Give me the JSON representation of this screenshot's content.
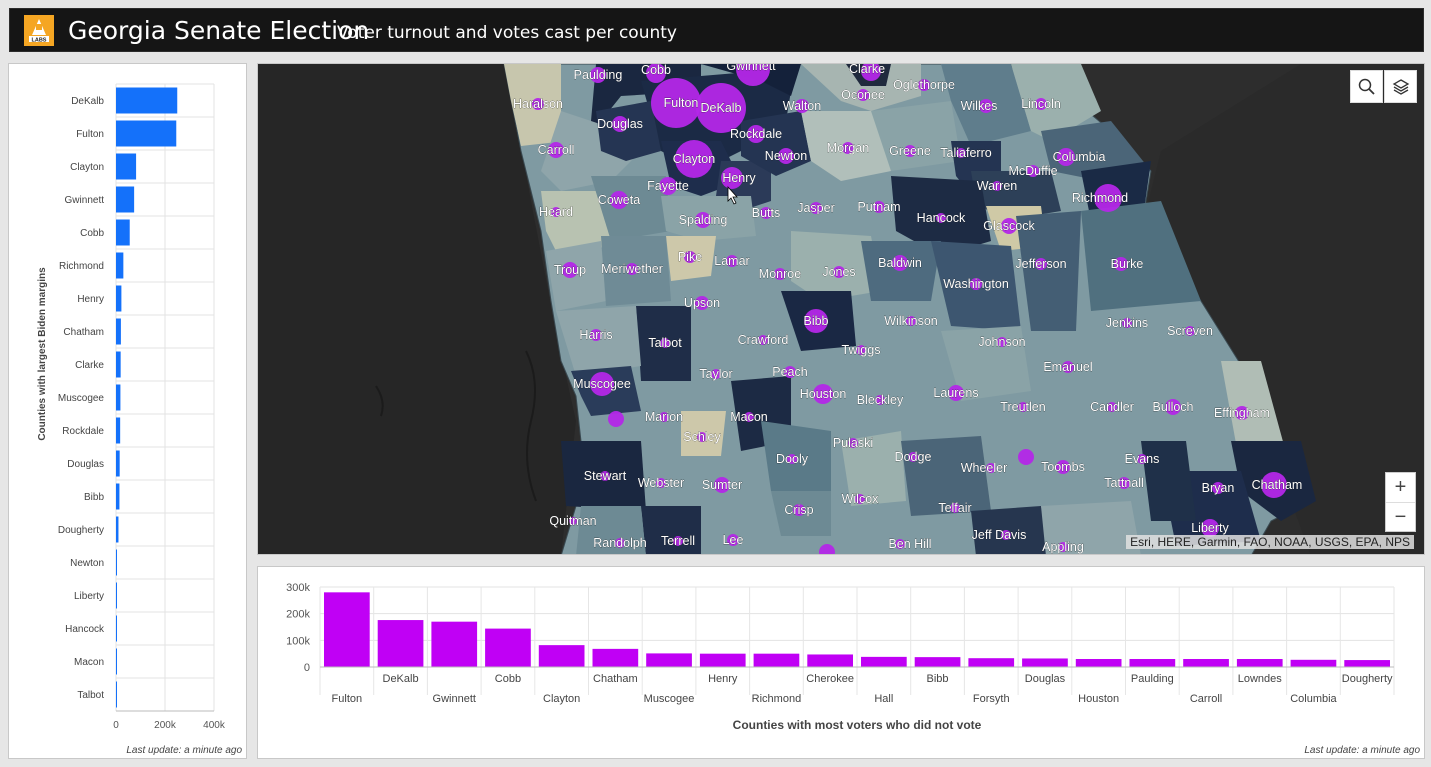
{
  "header": {
    "logo_text": "LABS",
    "title": "Georgia Senate Election",
    "subtitle": "Voter turnout and votes cast per county"
  },
  "left_chart": {
    "last_update": "Last update: a minute ago",
    "chart_data": {
      "type": "bar",
      "orientation": "horizontal",
      "ylabel": "Counties with largest Biden margins",
      "categories": [
        "DeKalb",
        "Fulton",
        "Clayton",
        "Gwinnett",
        "Cobb",
        "Richmond",
        "Henry",
        "Chatham",
        "Clarke",
        "Muscogee",
        "Rockdale",
        "Douglas",
        "Bibb",
        "Dougherty",
        "Newton",
        "Liberty",
        "Hancock",
        "Macon",
        "Talbot"
      ],
      "values": [
        250000,
        246000,
        82000,
        74000,
        56000,
        30000,
        22000,
        20000,
        19000,
        18000,
        17000,
        15000,
        14000,
        10000,
        4000,
        3000,
        1500,
        1200,
        1000
      ],
      "ticks": [
        "0",
        "200k",
        "400k"
      ],
      "xlim": [
        0,
        400000
      ],
      "color": "#1471fa",
      "grid": true
    }
  },
  "map": {
    "attribution": "Esri, HERE, Garmin, FAO, NOAA, USGS, EPA, NPS",
    "search_icon": "search-icon",
    "layers_icon": "layers-icon",
    "zoom_in": "+",
    "zoom_out": "−",
    "bubble_color": "#b427e8",
    "counties": [
      {
        "name": "Paulding",
        "lx": 597,
        "ly": 74,
        "cx": 597,
        "cy": 74,
        "r": 8
      },
      {
        "name": "Cobb",
        "lx": 655,
        "ly": 69,
        "cx": 655,
        "cy": 72,
        "r": 10
      },
      {
        "name": "Gwinnett",
        "lx": 750,
        "ly": 65,
        "cx": 752,
        "cy": 68,
        "r": 17
      },
      {
        "name": "Clarke",
        "lx": 866,
        "ly": 68,
        "cx": 870,
        "cy": 70,
        "r": 10
      },
      {
        "name": "Haralson",
        "lx": 537,
        "ly": 103,
        "cx": 537,
        "cy": 103,
        "r": 6
      },
      {
        "name": "Fulton",
        "lx": 680,
        "ly": 102,
        "cx": 675,
        "cy": 102,
        "r": 25
      },
      {
        "name": "DeKalb",
        "lx": 720,
        "ly": 107,
        "cx": 720,
        "cy": 107,
        "r": 25
      },
      {
        "name": "Walton",
        "lx": 801,
        "ly": 105,
        "cx": 801,
        "cy": 105,
        "r": 7
      },
      {
        "name": "Oconee",
        "lx": 862,
        "ly": 94,
        "cx": 862,
        "cy": 94,
        "r": 6
      },
      {
        "name": "Oglethorpe",
        "lx": 923,
        "ly": 84,
        "cx": 923,
        "cy": 84,
        "r": 6
      },
      {
        "name": "Wilkes",
        "lx": 978,
        "ly": 105,
        "cx": 985,
        "cy": 105,
        "r": 7
      },
      {
        "name": "Lincoln",
        "lx": 1040,
        "ly": 103,
        "cx": 1040,
        "cy": 103,
        "r": 6
      },
      {
        "name": "Douglas",
        "lx": 619,
        "ly": 123,
        "cx": 619,
        "cy": 123,
        "r": 8
      },
      {
        "name": "Rockdale",
        "lx": 755,
        "ly": 133,
        "cx": 755,
        "cy": 133,
        "r": 9
      },
      {
        "name": "Carroll",
        "lx": 555,
        "ly": 149,
        "cx": 555,
        "cy": 149,
        "r": 8
      },
      {
        "name": "Clayton",
        "lx": 693,
        "ly": 158,
        "cx": 693,
        "cy": 158,
        "r": 19
      },
      {
        "name": "Newton",
        "lx": 785,
        "ly": 155,
        "cx": 785,
        "cy": 155,
        "r": 8
      },
      {
        "name": "Morgan",
        "lx": 847,
        "ly": 147,
        "cx": 847,
        "cy": 147,
        "r": 6
      },
      {
        "name": "Greene",
        "lx": 909,
        "ly": 150,
        "cx": 909,
        "cy": 150,
        "r": 6
      },
      {
        "name": "Taliaferro",
        "lx": 965,
        "ly": 152,
        "cx": 960,
        "cy": 152,
        "r": 5
      },
      {
        "name": "Columbia",
        "lx": 1078,
        "ly": 156,
        "cx": 1065,
        "cy": 156,
        "r": 9
      },
      {
        "name": "Henry",
        "lx": 738,
        "ly": 177,
        "cx": 731,
        "cy": 177,
        "r": 11
      },
      {
        "name": "McDuffie",
        "lx": 1032,
        "ly": 170,
        "cx": 1032,
        "cy": 170,
        "r": 6
      },
      {
        "name": "Fayette",
        "lx": 667,
        "ly": 185,
        "cx": 667,
        "cy": 185,
        "r": 9
      },
      {
        "name": "Warren",
        "lx": 996,
        "ly": 185,
        "cx": 996,
        "cy": 185,
        "r": 5
      },
      {
        "name": "Coweta",
        "lx": 618,
        "ly": 199,
        "cx": 618,
        "cy": 199,
        "r": 9
      },
      {
        "name": "Richmond",
        "lx": 1099,
        "ly": 197,
        "cx": 1107,
        "cy": 197,
        "r": 14
      },
      {
        "name": "Butts",
        "lx": 765,
        "ly": 212,
        "cx": 765,
        "cy": 212,
        "r": 6
      },
      {
        "name": "Jasper",
        "lx": 815,
        "ly": 207,
        "cx": 815,
        "cy": 207,
        "r": 6
      },
      {
        "name": "Putnam",
        "lx": 878,
        "ly": 206,
        "cx": 878,
        "cy": 206,
        "r": 6
      },
      {
        "name": "Heard",
        "lx": 555,
        "ly": 211,
        "cx": 555,
        "cy": 211,
        "r": 5
      },
      {
        "name": "Spalding",
        "lx": 702,
        "ly": 219,
        "cx": 702,
        "cy": 219,
        "r": 8
      },
      {
        "name": "Hancock",
        "lx": 940,
        "ly": 217,
        "cx": 940,
        "cy": 217,
        "r": 5
      },
      {
        "name": "Glascock",
        "lx": 1008,
        "ly": 225,
        "cx": 1008,
        "cy": 225,
        "r": 8
      },
      {
        "name": "Pike",
        "lx": 689,
        "ly": 256,
        "cx": 689,
        "cy": 256,
        "r": 6
      },
      {
        "name": "Lamar",
        "lx": 731,
        "ly": 260,
        "cx": 731,
        "cy": 260,
        "r": 6
      },
      {
        "name": "Troup",
        "lx": 569,
        "ly": 269,
        "cx": 569,
        "cy": 269,
        "r": 8
      },
      {
        "name": "Meriwether",
        "lx": 631,
        "ly": 268,
        "cx": 631,
        "cy": 268,
        "r": 6
      },
      {
        "name": "Monroe",
        "lx": 779,
        "ly": 273,
        "cx": 779,
        "cy": 273,
        "r": 6
      },
      {
        "name": "Jones",
        "lx": 838,
        "ly": 271,
        "cx": 838,
        "cy": 271,
        "r": 6
      },
      {
        "name": "Baldwin",
        "lx": 899,
        "ly": 262,
        "cx": 899,
        "cy": 262,
        "r": 8
      },
      {
        "name": "Jefferson",
        "lx": 1040,
        "ly": 263,
        "cx": 1040,
        "cy": 263,
        "r": 6
      },
      {
        "name": "Burke",
        "lx": 1126,
        "ly": 263,
        "cx": 1120,
        "cy": 263,
        "r": 7
      },
      {
        "name": "Washington",
        "lx": 975,
        "ly": 283,
        "cx": 975,
        "cy": 283,
        "r": 6
      },
      {
        "name": "Upson",
        "lx": 701,
        "ly": 302,
        "cx": 701,
        "cy": 302,
        "r": 7
      },
      {
        "name": "Bibb",
        "lx": 815,
        "ly": 320,
        "cx": 815,
        "cy": 320,
        "r": 12
      },
      {
        "name": "Wilkinson",
        "lx": 910,
        "ly": 320,
        "cx": 910,
        "cy": 320,
        "r": 5
      },
      {
        "name": "Jenkins",
        "lx": 1126,
        "ly": 322,
        "cx": 1126,
        "cy": 322,
        "r": 5
      },
      {
        "name": "Screven",
        "lx": 1189,
        "ly": 330,
        "cx": 1189,
        "cy": 330,
        "r": 5
      },
      {
        "name": "Harris",
        "lx": 595,
        "ly": 334,
        "cx": 595,
        "cy": 334,
        "r": 6
      },
      {
        "name": "Talbot",
        "lx": 664,
        "ly": 342,
        "cx": 664,
        "cy": 342,
        "r": 5
      },
      {
        "name": "Crawford",
        "lx": 762,
        "ly": 339,
        "cx": 762,
        "cy": 339,
        "r": 5
      },
      {
        "name": "Johnson",
        "lx": 1001,
        "ly": 341,
        "cx": 1001,
        "cy": 341,
        "r": 5
      },
      {
        "name": "Twiggs",
        "lx": 860,
        "ly": 349,
        "cx": 860,
        "cy": 349,
        "r": 5
      },
      {
        "name": "Emanuel",
        "lx": 1067,
        "ly": 366,
        "cx": 1067,
        "cy": 366,
        "r": 6
      },
      {
        "name": "Taylor",
        "lx": 715,
        "ly": 373,
        "cx": 715,
        "cy": 373,
        "r": 5
      },
      {
        "name": "Peach",
        "lx": 789,
        "ly": 371,
        "cx": 789,
        "cy": 371,
        "r": 6
      },
      {
        "name": "Muscogee",
        "lx": 601,
        "ly": 383,
        "cx": 601,
        "cy": 383,
        "r": 12
      },
      {
        "name": "Houston",
        "lx": 822,
        "ly": 393,
        "cx": 822,
        "cy": 393,
        "r": 10
      },
      {
        "name": "Laurens",
        "lx": 955,
        "ly": 392,
        "cx": 955,
        "cy": 392,
        "r": 8
      },
      {
        "name": "Bleckley",
        "lx": 879,
        "ly": 399,
        "cx": 879,
        "cy": 399,
        "r": 5
      },
      {
        "name": "Treutlen",
        "lx": 1022,
        "ly": 406,
        "cx": 1022,
        "cy": 406,
        "r": 5
      },
      {
        "name": "Candler",
        "lx": 1111,
        "ly": 406,
        "cx": 1111,
        "cy": 406,
        "r": 5
      },
      {
        "name": "Bulloch",
        "lx": 1172,
        "ly": 406,
        "cx": 1172,
        "cy": 406,
        "r": 8
      },
      {
        "name": "Effingham",
        "lx": 1241,
        "ly": 412,
        "cx": 1241,
        "cy": 412,
        "r": 7
      },
      {
        "name": "Marion",
        "lx": 663,
        "ly": 416,
        "cx": 663,
        "cy": 416,
        "r": 5
      },
      {
        "name": "Macon",
        "lx": 748,
        "ly": 416,
        "cx": 748,
        "cy": 416,
        "r": 5
      },
      {
        "name": "Schley",
        "lx": 701,
        "ly": 436,
        "cx": 701,
        "cy": 436,
        "r": 5
      },
      {
        "name": "Pulaski",
        "lx": 852,
        "ly": 442,
        "cx": 852,
        "cy": 442,
        "r": 5
      },
      {
        "name": "Dooly",
        "lx": 791,
        "ly": 458,
        "cx": 791,
        "cy": 458,
        "r": 5
      },
      {
        "name": "Dodge",
        "lx": 912,
        "ly": 456,
        "cx": 912,
        "cy": 456,
        "r": 5
      },
      {
        "name": "Wheeler",
        "lx": 983,
        "ly": 467,
        "cx": 990,
        "cy": 467,
        "r": 5
      },
      {
        "name": "Toombs",
        "lx": 1062,
        "ly": 466,
        "cx": 1062,
        "cy": 466,
        "r": 7
      },
      {
        "name": "Evans",
        "lx": 1141,
        "ly": 458,
        "cx": 1141,
        "cy": 458,
        "r": 5
      },
      {
        "name": "Stewart",
        "lx": 604,
        "ly": 475,
        "cx": 604,
        "cy": 475,
        "r": 5
      },
      {
        "name": "Webster",
        "lx": 660,
        "ly": 482,
        "cx": 660,
        "cy": 482,
        "r": 5
      },
      {
        "name": "Sumter",
        "lx": 721,
        "ly": 484,
        "cx": 721,
        "cy": 484,
        "r": 8
      },
      {
        "name": "Tattnall",
        "lx": 1123,
        "ly": 482,
        "cx": 1123,
        "cy": 482,
        "r": 6
      },
      {
        "name": "Chatham",
        "lx": 1276,
        "ly": 484,
        "cx": 1273,
        "cy": 484,
        "r": 13
      },
      {
        "name": "Bryan",
        "lx": 1217,
        "ly": 487,
        "cx": 1217,
        "cy": 487,
        "r": 6
      },
      {
        "name": "Wilcox",
        "lx": 859,
        "ly": 498,
        "cx": 859,
        "cy": 498,
        "r": 5
      },
      {
        "name": "Telfair",
        "lx": 954,
        "ly": 507,
        "cx": 954,
        "cy": 507,
        "r": 5
      },
      {
        "name": "Crisp",
        "lx": 798,
        "ly": 509,
        "cx": 798,
        "cy": 509,
        "r": 6
      },
      {
        "name": "Quitman",
        "lx": 572,
        "ly": 520,
        "cx": 572,
        "cy": 520,
        "r": 4
      },
      {
        "name": "Liberty",
        "lx": 1209,
        "ly": 527,
        "cx": 1209,
        "cy": 527,
        "r": 9
      },
      {
        "name": "Jeff Davis",
        "lx": 998,
        "ly": 534,
        "cx": 1005,
        "cy": 534,
        "r": 5
      },
      {
        "name": "Terrell",
        "lx": 677,
        "ly": 540,
        "cx": 677,
        "cy": 540,
        "r": 5
      },
      {
        "name": "Lee",
        "lx": 732,
        "ly": 539,
        "cx": 732,
        "cy": 539,
        "r": 6
      },
      {
        "name": "Randolph",
        "lx": 619,
        "ly": 542,
        "cx": 619,
        "cy": 542,
        "r": 5
      },
      {
        "name": "Ben Hill",
        "lx": 909,
        "ly": 543,
        "cx": 899,
        "cy": 543,
        "r": 5
      },
      {
        "name": "Appling",
        "lx": 1062,
        "ly": 546,
        "cx": 1062,
        "cy": 546,
        "r": 5
      },
      {
        "name": "",
        "lx": 0,
        "ly": 0,
        "cx": 615,
        "cy": 418,
        "r": 8
      },
      {
        "name": "",
        "lx": 0,
        "ly": 0,
        "cx": 1025,
        "cy": 456,
        "r": 8
      },
      {
        "name": "",
        "lx": 0,
        "ly": 0,
        "cx": 826,
        "cy": 551,
        "r": 8
      }
    ]
  },
  "bottom_chart": {
    "last_update": "Last update: a minute ago",
    "chart_data": {
      "type": "bar",
      "xlabel": "Counties with most voters who did not vote",
      "categories": [
        "Fulton",
        "DeKalb",
        "Gwinnett",
        "Cobb",
        "Clayton",
        "Chatham",
        "Muscogee",
        "Henry",
        "Richmond",
        "Cherokee",
        "Hall",
        "Bibb",
        "Forsyth",
        "Douglas",
        "Houston",
        "Paulding",
        "Carroll",
        "Lowndes",
        "Columbia",
        "Dougherty"
      ],
      "values": [
        280000,
        176000,
        170000,
        144000,
        82000,
        68000,
        51000,
        50000,
        50000,
        47000,
        38000,
        37000,
        33000,
        32000,
        30000,
        30000,
        30000,
        30000,
        27000,
        26000
      ],
      "ticks": [
        "0",
        "100k",
        "200k",
        "300k"
      ],
      "ylim": [
        0,
        300000
      ],
      "color": "#c000f5",
      "grid": true
    }
  }
}
